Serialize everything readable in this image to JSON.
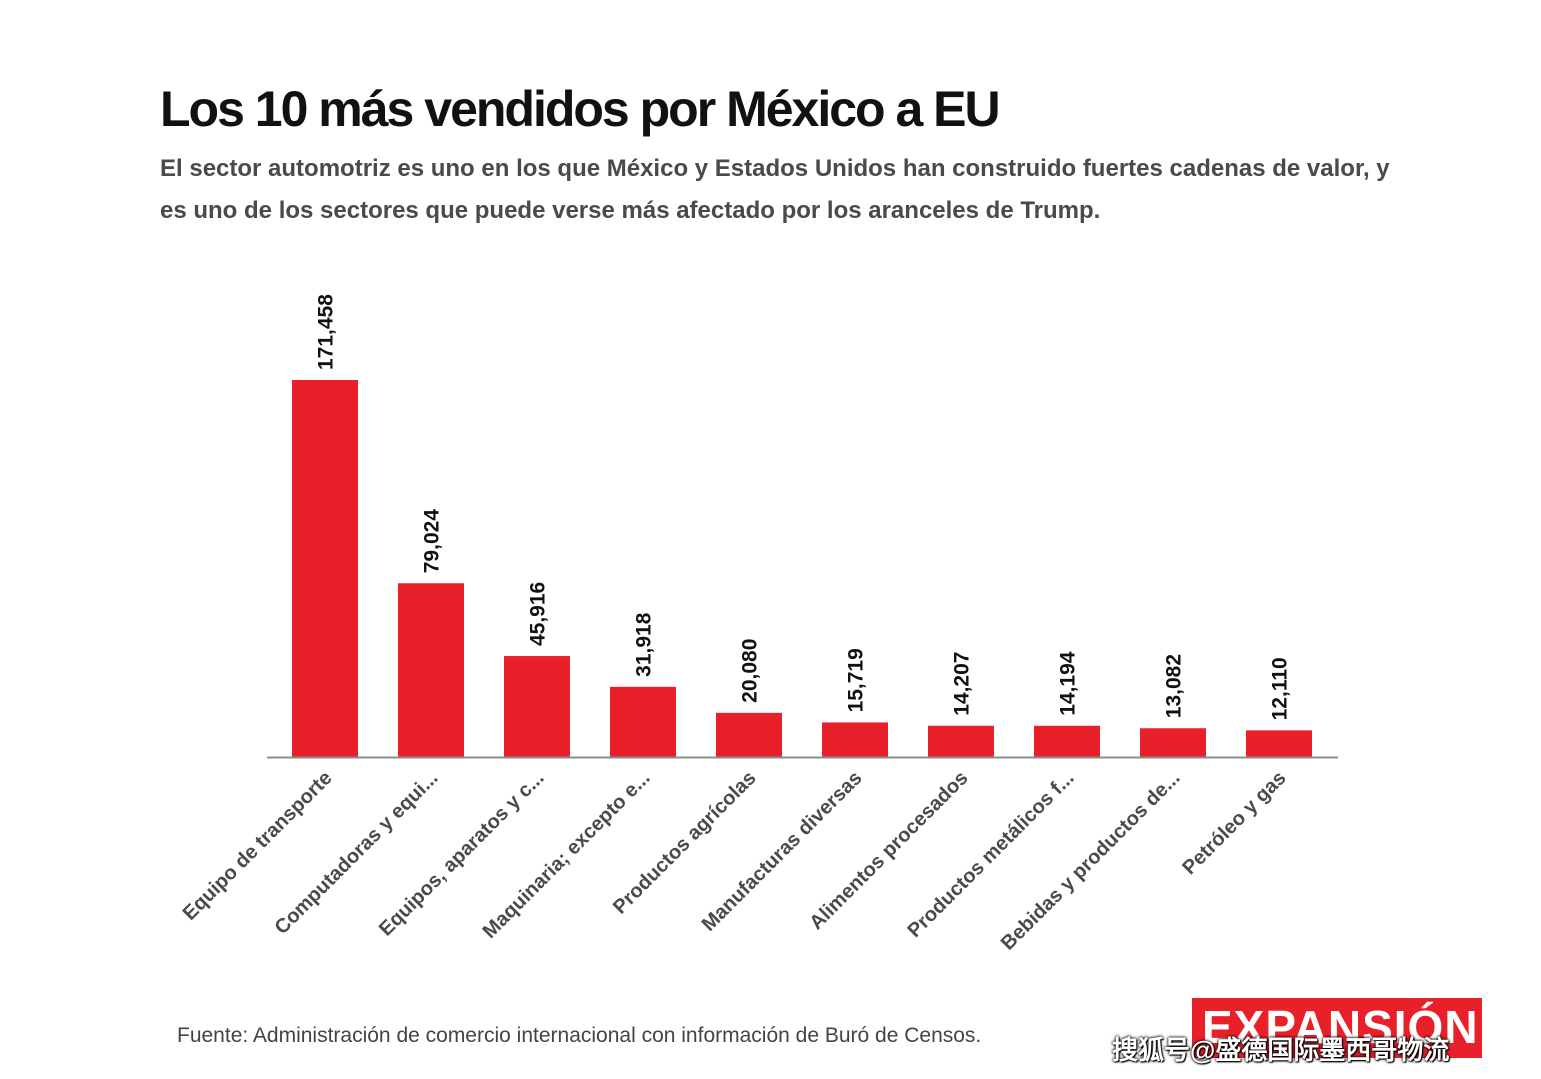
{
  "title": "Los 10 más vendidos por México a EU",
  "subtitle": "El sector automotriz es uno en los que México y Estados Unidos han construido fuertes cadenas de valor, y es uno de los sectores que puede verse más afectado por los aranceles de Trump.",
  "source": "Fuente: Administración de comercio internacional con información de Buró de Censos.",
  "logo_text": "EXPANSIÓN",
  "watermark": "搜狐号@盛德国际墨西哥物流",
  "colors": {
    "bar": "#e8202a",
    "axis": "#8c8c8c",
    "label": "#111111",
    "category": "#4a4a4a"
  },
  "chart_data": {
    "type": "bar",
    "categories": [
      "Equipo de transporte",
      "Computadoras y equi...",
      "Equipos, aparatos y c...",
      "Maquinaria; excepto e...",
      "Productos agrícolas",
      "Manufacturas diversas",
      "Alimentos procesados",
      "Productos metálicos f...",
      "Bebidas y productos de...",
      "Petróleo y gas"
    ],
    "values": [
      171458,
      79024,
      45916,
      31918,
      20080,
      15719,
      14207,
      14194,
      13082,
      12110
    ],
    "value_labels": [
      "171,458",
      "79,024",
      "45,916",
      "31,918",
      "20,080",
      "15,719",
      "14,207",
      "14,194",
      "13,082",
      "12,110"
    ],
    "ylim": [
      0,
      171458
    ],
    "grid": false,
    "legend": "none"
  }
}
